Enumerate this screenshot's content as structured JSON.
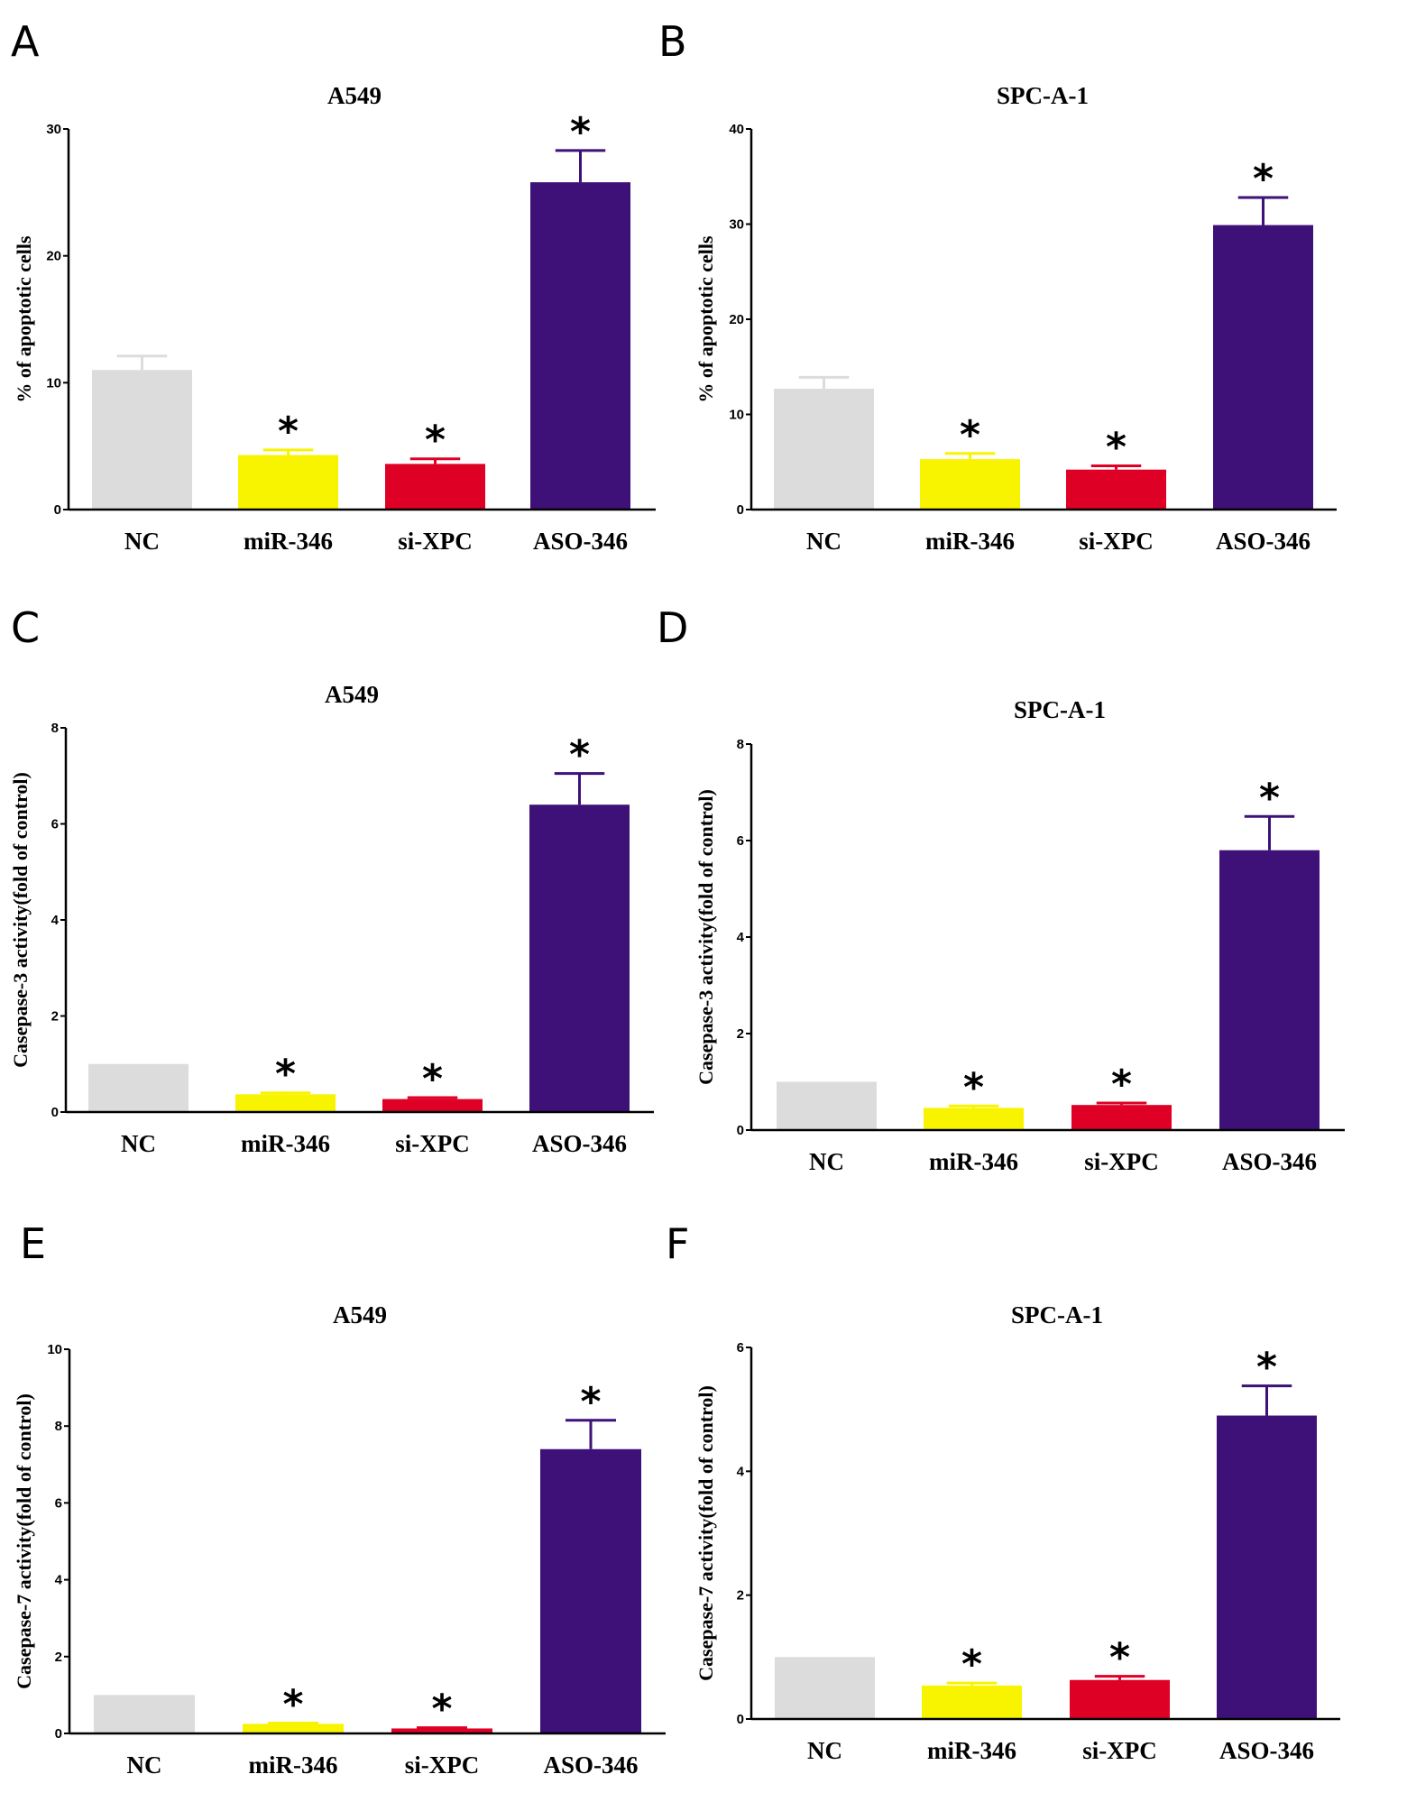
{
  "figure": {
    "categories": [
      "NC",
      "miR-346",
      "si-XPC",
      "ASO-346"
    ],
    "colors": {
      "NC": "#dcdcdc",
      "miR-346": "#f8f400",
      "si-XPC": "#de0025",
      "ASO-346": "#3d1177"
    },
    "significance_marker": "*"
  },
  "chart_data": [
    {
      "id": "A",
      "panel_label": "A",
      "type": "bar",
      "title": "A549",
      "xlabel": "",
      "ylabel": "% of apoptotic cells",
      "ylim": [
        0,
        30
      ],
      "yticks": [
        0,
        10,
        20,
        30
      ],
      "grid": false,
      "categories": [
        "NC",
        "miR-346",
        "si-XPC",
        "ASO-346"
      ],
      "values": [
        11.0,
        4.3,
        3.6,
        25.8
      ],
      "error_upper": [
        12.1,
        4.7,
        4.0,
        28.3
      ],
      "significant": [
        false,
        true,
        true,
        true
      ]
    },
    {
      "id": "B",
      "panel_label": "B",
      "type": "bar",
      "title": "SPC-A-1",
      "xlabel": "",
      "ylabel": "% of apoptotic cells",
      "ylim": [
        0,
        40
      ],
      "yticks": [
        0,
        10,
        20,
        30,
        40
      ],
      "grid": false,
      "categories": [
        "NC",
        "miR-346",
        "si-XPC",
        "ASO-346"
      ],
      "values": [
        12.7,
        5.3,
        4.2,
        29.9
      ],
      "error_upper": [
        13.9,
        5.9,
        4.6,
        32.8
      ],
      "significant": [
        false,
        true,
        true,
        true
      ]
    },
    {
      "id": "C",
      "panel_label": "C",
      "type": "bar",
      "title": "A549",
      "xlabel": "",
      "ylabel": "Casepase-3 activity(fold of control)",
      "ylim": [
        0,
        8
      ],
      "yticks": [
        0,
        2,
        4,
        6,
        8
      ],
      "grid": false,
      "categories": [
        "NC",
        "miR-346",
        "si-XPC",
        "ASO-346"
      ],
      "values": [
        1.0,
        0.37,
        0.27,
        6.4
      ],
      "error_upper": [
        1.0,
        0.4,
        0.3,
        7.05
      ],
      "significant": [
        false,
        true,
        true,
        true
      ]
    },
    {
      "id": "D",
      "panel_label": "D",
      "type": "bar",
      "title": "SPC-A-1",
      "xlabel": "",
      "ylabel": "Casepase-3 activity(fold of control)",
      "ylim": [
        0,
        8
      ],
      "yticks": [
        0,
        2,
        4,
        6,
        8
      ],
      "grid": false,
      "categories": [
        "NC",
        "miR-346",
        "si-XPC",
        "ASO-346"
      ],
      "values": [
        1.0,
        0.46,
        0.52,
        5.8
      ],
      "error_upper": [
        1.0,
        0.5,
        0.56,
        6.5
      ],
      "significant": [
        false,
        true,
        true,
        true
      ]
    },
    {
      "id": "E",
      "panel_label": "E",
      "type": "bar",
      "title": "A549",
      "xlabel": "",
      "ylabel": "Casepase-7 activity(fold of control)",
      "ylim": [
        0,
        10
      ],
      "yticks": [
        0,
        2,
        4,
        6,
        8,
        10
      ],
      "grid": false,
      "categories": [
        "NC",
        "miR-346",
        "si-XPC",
        "ASO-346"
      ],
      "values": [
        1.0,
        0.25,
        0.13,
        7.4
      ],
      "error_upper": [
        1.0,
        0.27,
        0.15,
        8.15
      ],
      "significant": [
        false,
        true,
        true,
        true
      ]
    },
    {
      "id": "F",
      "panel_label": "F",
      "type": "bar",
      "title": "SPC-A-1",
      "xlabel": "",
      "ylabel": "Casepase-7 activity(fold of control)",
      "ylim": [
        0,
        6
      ],
      "yticks": [
        0,
        2,
        4,
        6
      ],
      "grid": false,
      "categories": [
        "NC",
        "miR-346",
        "si-XPC",
        "ASO-346"
      ],
      "values": [
        1.0,
        0.54,
        0.63,
        4.9
      ],
      "error_upper": [
        1.0,
        0.58,
        0.69,
        5.38
      ],
      "significant": [
        false,
        true,
        true,
        true
      ]
    }
  ]
}
